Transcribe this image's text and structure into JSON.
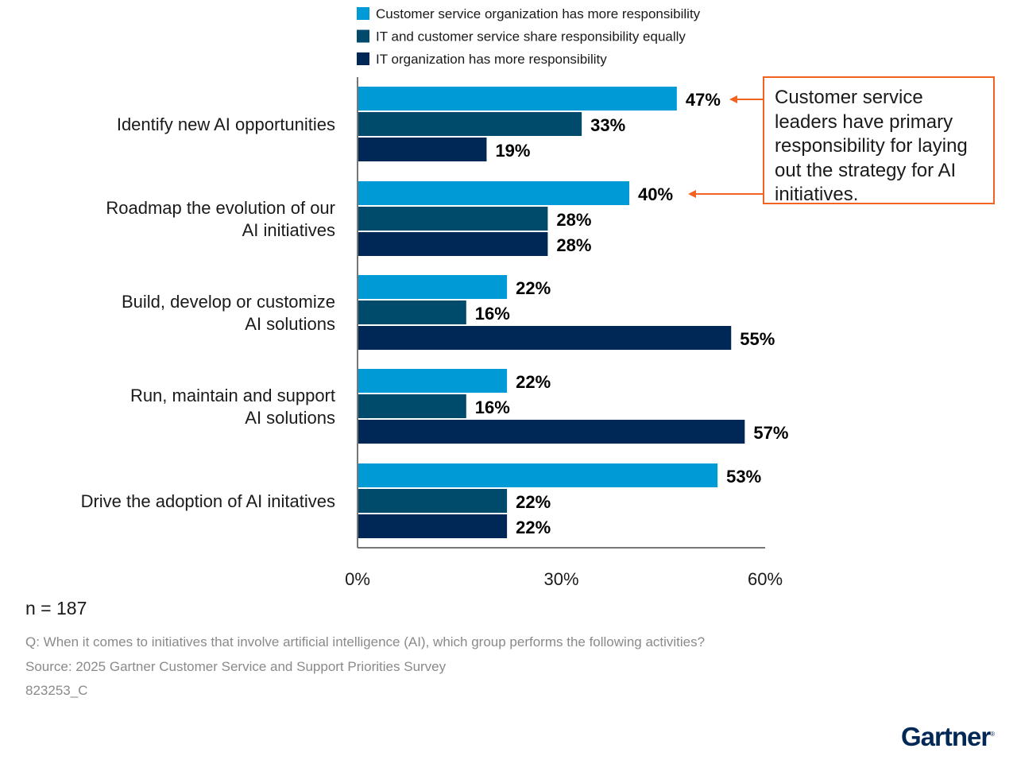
{
  "chart_data": {
    "type": "bar",
    "orientation": "horizontal",
    "categories": [
      "Identify new AI opportunities",
      "Roadmap the evolution of our\nAI initiatives",
      "Build, develop or customize\nAI solutions",
      "Run, maintain and support\nAI solutions",
      "Drive the adoption of AI initatives"
    ],
    "series": [
      {
        "name": "Customer service organization has more responsibility",
        "color": "#009ad6",
        "values": [
          47,
          40,
          22,
          22,
          53
        ]
      },
      {
        "name": "IT and customer service share responsibility equally",
        "color": "#004a6b",
        "values": [
          33,
          28,
          16,
          16,
          22
        ]
      },
      {
        "name": "IT organization has more responsibility",
        "color": "#002856",
        "values": [
          19,
          28,
          55,
          57,
          22
        ]
      }
    ],
    "xlim": [
      0,
      60
    ],
    "xticks": [
      "0%",
      "30%",
      "60%"
    ],
    "legend_position": "top",
    "grid": false,
    "annotation": {
      "text": "Customer service leaders have primary responsibility for laying out the strategy for AI initiatives.",
      "color": "#f26322"
    }
  },
  "footer": {
    "n": "n = 187",
    "question": "Q: When it comes to initiatives that involve artificial intelligence (AI), which group performs the following activities?",
    "source": "Source: 2025 Gartner Customer Service and Support Priorities Survey",
    "id": "823253_C"
  },
  "logo": "Gartner"
}
